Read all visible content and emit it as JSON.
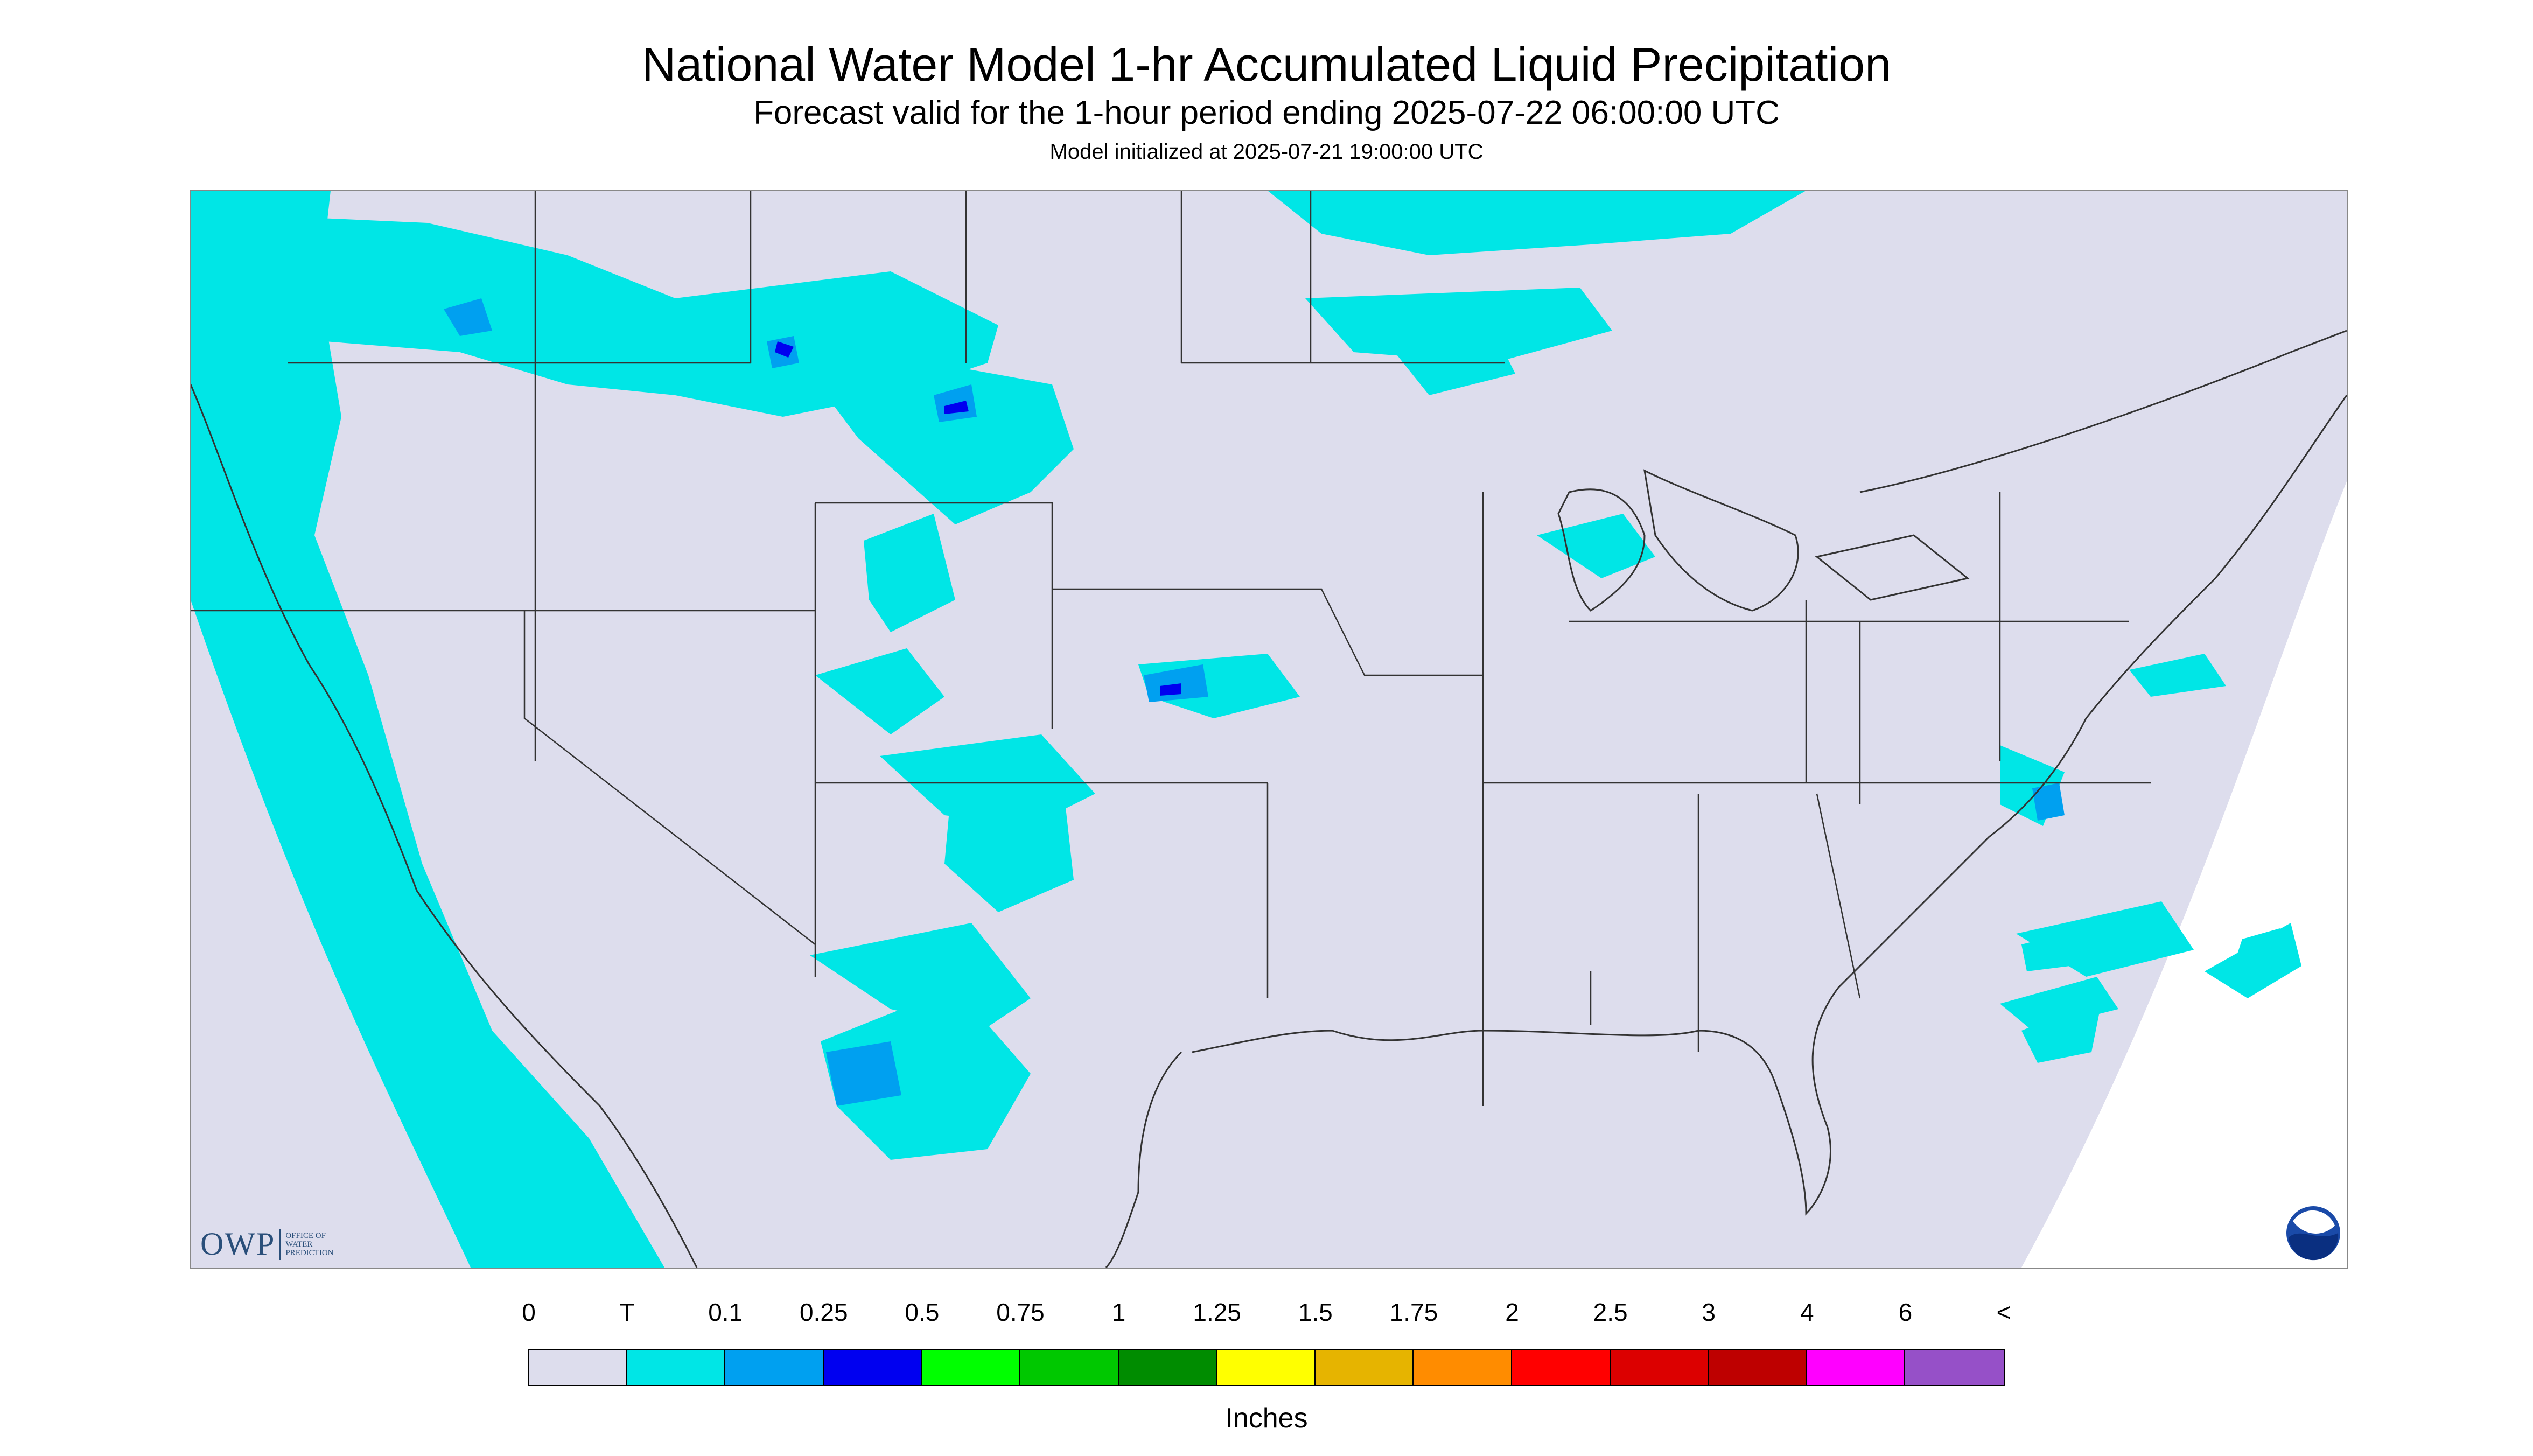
{
  "header": {
    "title": "National Water Model 1-hr Accumulated Liquid Precipitation",
    "subtitle": "Forecast valid for the 1-hour period ending 2025-07-22 06:00:00 UTC",
    "init": "Model initialized at 2025-07-21 19:00:00 UTC"
  },
  "logos": {
    "owp_mark": "OWP",
    "owp_text_1": "OFFICE OF",
    "owp_text_2": "WATER",
    "owp_text_3": "PREDICTION",
    "noaa": "NOAA"
  },
  "colorbar": {
    "labels": [
      "0",
      "T",
      "0.1",
      "0.25",
      "0.5",
      "0.75",
      "1",
      "1.25",
      "1.5",
      "1.75",
      "2",
      "2.5",
      "3",
      "4",
      "6",
      "<"
    ],
    "colors": [
      "#dddded",
      "#00e6e6",
      "#00a0f0",
      "#0000f0",
      "#00ff00",
      "#00c800",
      "#008c00",
      "#ffff00",
      "#e6b400",
      "#ff8c00",
      "#ff0000",
      "#dc0000",
      "#be0000",
      "#ff00ff",
      "#9650c8"
    ],
    "units": "Inches"
  },
  "colors": {
    "background": "#dddded",
    "trace": "#00e6e6",
    "light": "#00a0f0",
    "medium": "#0000f0",
    "borders": "#333333"
  }
}
